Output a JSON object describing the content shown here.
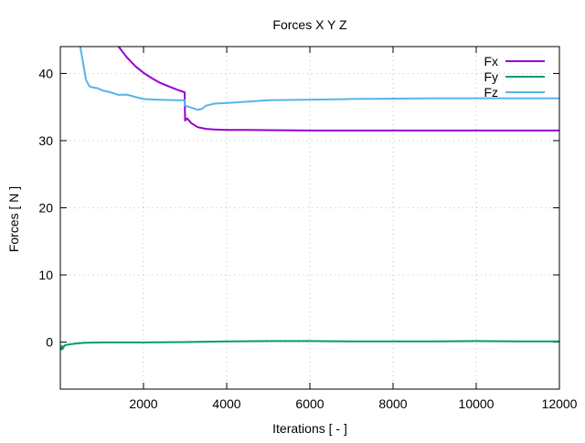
{
  "chart_data": {
    "type": "line",
    "title": "Forces X Y Z",
    "xlabel": "Iterations [ - ]",
    "ylabel": "Forces [ N ]",
    "xlim": [
      0,
      12000
    ],
    "ylim": [
      -7,
      44
    ],
    "xticks": [
      2000,
      4000,
      6000,
      8000,
      10000,
      12000
    ],
    "xtick_labels": [
      "2000",
      "4000",
      "6000",
      "8000",
      "10000",
      "12000"
    ],
    "yticks": [
      0,
      10,
      20,
      30,
      40
    ],
    "ytick_labels": [
      "0",
      "10",
      "20",
      "30",
      "40"
    ],
    "grid": true,
    "legend_position": "top-right",
    "series": [
      {
        "name": "Fx",
        "color": "#9400d3",
        "points": [
          [
            1400,
            44.0
          ],
          [
            1600,
            42.4
          ],
          [
            1800,
            41.1
          ],
          [
            2000,
            40.1
          ],
          [
            2200,
            39.3
          ],
          [
            2400,
            38.6
          ],
          [
            2600,
            38.1
          ],
          [
            2800,
            37.6
          ],
          [
            2990,
            37.2
          ],
          [
            3000,
            33.0
          ],
          [
            3050,
            33.3
          ],
          [
            3150,
            32.6
          ],
          [
            3300,
            32.0
          ],
          [
            3500,
            31.75
          ],
          [
            3700,
            31.65
          ],
          [
            4000,
            31.6
          ],
          [
            4500,
            31.6
          ],
          [
            5000,
            31.55
          ],
          [
            6000,
            31.5
          ],
          [
            7000,
            31.5
          ],
          [
            8000,
            31.5
          ],
          [
            9000,
            31.5
          ],
          [
            10000,
            31.5
          ],
          [
            11000,
            31.5
          ],
          [
            12000,
            31.5
          ]
        ]
      },
      {
        "name": "Fy",
        "color": "#009e73",
        "points": [
          [
            20,
            -1.2
          ],
          [
            40,
            -0.6
          ],
          [
            60,
            -1.0
          ],
          [
            100,
            -0.5
          ],
          [
            200,
            -0.35
          ],
          [
            400,
            -0.2
          ],
          [
            600,
            -0.1
          ],
          [
            1000,
            -0.05
          ],
          [
            2000,
            -0.05
          ],
          [
            3000,
            0.0
          ],
          [
            4000,
            0.1
          ],
          [
            5000,
            0.15
          ],
          [
            6000,
            0.15
          ],
          [
            7000,
            0.1
          ],
          [
            8000,
            0.1
          ],
          [
            9000,
            0.1
          ],
          [
            10000,
            0.15
          ],
          [
            11000,
            0.1
          ],
          [
            12000,
            0.1
          ]
        ]
      },
      {
        "name": "Fz",
        "color": "#56b4e9",
        "points": [
          [
            480,
            44.0
          ],
          [
            550,
            41.5
          ],
          [
            620,
            39.0
          ],
          [
            700,
            38.1
          ],
          [
            800,
            37.9
          ],
          [
            900,
            37.8
          ],
          [
            1000,
            37.5
          ],
          [
            1200,
            37.2
          ],
          [
            1400,
            36.8
          ],
          [
            1600,
            36.85
          ],
          [
            1800,
            36.5
          ],
          [
            2000,
            36.2
          ],
          [
            2300,
            36.1
          ],
          [
            2600,
            36.05
          ],
          [
            2900,
            36.0
          ],
          [
            2990,
            36.0
          ],
          [
            3000,
            35.2
          ],
          [
            3100,
            35.0
          ],
          [
            3200,
            34.8
          ],
          [
            3300,
            34.6
          ],
          [
            3400,
            34.7
          ],
          [
            3500,
            35.2
          ],
          [
            3700,
            35.5
          ],
          [
            4000,
            35.6
          ],
          [
            4500,
            35.8
          ],
          [
            5000,
            36.0
          ],
          [
            6000,
            36.1
          ],
          [
            7000,
            36.2
          ],
          [
            8000,
            36.25
          ],
          [
            9000,
            36.3
          ],
          [
            10000,
            36.3
          ],
          [
            11000,
            36.3
          ],
          [
            12000,
            36.3
          ]
        ]
      }
    ]
  }
}
